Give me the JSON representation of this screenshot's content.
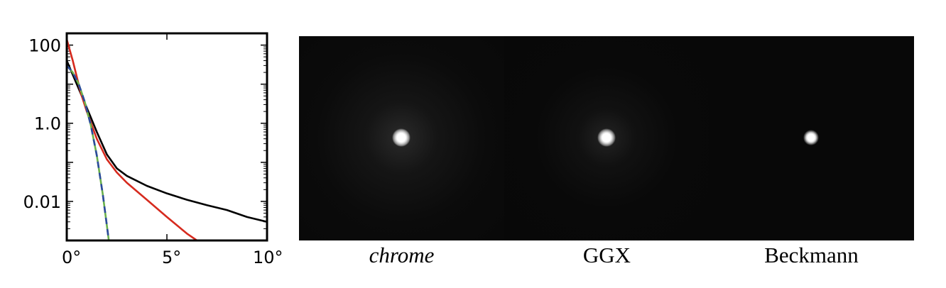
{
  "chart_data": {
    "type": "line",
    "title": "",
    "xlabel": "",
    "ylabel": "",
    "xlim": [
      0,
      10
    ],
    "ylim": [
      0.001,
      200
    ],
    "yscale": "log",
    "grid": false,
    "x_tick_labels": [
      {
        "value": 0,
        "label": "0°"
      },
      {
        "value": 5,
        "label": "5°"
      },
      {
        "value": 10,
        "label": "10°"
      }
    ],
    "y_tick_labels": [
      {
        "value": 100,
        "label": "100"
      },
      {
        "value": 1,
        "label": "1.0"
      },
      {
        "value": 0.01,
        "label": "0.01"
      }
    ],
    "series": [
      {
        "color": "#000000",
        "dash": "",
        "x": [
          0,
          0.5,
          1,
          1.5,
          2,
          2.5,
          3,
          4,
          5,
          6,
          7,
          8,
          9,
          10
        ],
        "y": [
          40,
          10,
          2.5,
          0.6,
          0.16,
          0.07,
          0.045,
          0.025,
          0.016,
          0.011,
          0.008,
          0.006,
          0.004,
          0.003
        ]
      },
      {
        "color": "#d62a1e",
        "dash": "",
        "x": [
          0,
          0.3,
          0.7,
          1,
          1.5,
          2,
          2.5,
          3,
          4,
          5,
          6,
          6.5
        ],
        "y": [
          140,
          40,
          6,
          2,
          0.4,
          0.12,
          0.055,
          0.03,
          0.011,
          0.004,
          0.0015,
          0.001
        ]
      },
      {
        "color": "#6ab04c",
        "dash": "",
        "x": [
          0,
          0.3,
          0.6,
          0.9,
          1.2,
          1.5,
          1.8,
          2.1,
          2.3
        ],
        "y": [
          30,
          20,
          10,
          3.5,
          0.9,
          0.15,
          0.015,
          0.001,
          0.0003
        ]
      },
      {
        "color": "#2c4a9c",
        "dash": "9 7",
        "x": [
          0,
          0.3,
          0.6,
          0.9,
          1.2,
          1.5,
          1.8,
          2.1,
          2.3
        ],
        "y": [
          30,
          20,
          10,
          3.5,
          0.9,
          0.15,
          0.015,
          0.001,
          0.0003
        ]
      }
    ]
  },
  "renders": [
    {
      "caption": "chrome",
      "italic": true
    },
    {
      "caption": "GGX",
      "italic": false
    },
    {
      "caption": "Beckmann",
      "italic": false
    }
  ]
}
